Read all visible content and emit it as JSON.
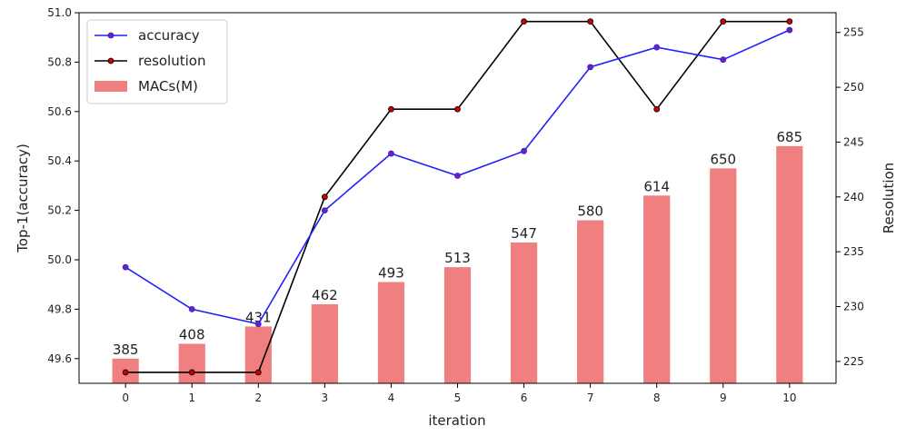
{
  "chart_data": {
    "type": "bar",
    "xlabel": "iteration",
    "ylabel_left": "Top-1(accuracy)",
    "ylabel_right": "Resolution",
    "categories": [
      "0",
      "1",
      "2",
      "3",
      "4",
      "5",
      "6",
      "7",
      "8",
      "9",
      "10"
    ],
    "x": [
      0,
      1,
      2,
      3,
      4,
      5,
      6,
      7,
      8,
      9,
      10
    ],
    "xlim": [
      -0.7,
      10.7
    ],
    "ylim_left": [
      49.5,
      51.0
    ],
    "ylim_right": [
      223.0,
      256.8
    ],
    "left_ticks": [
      "49.6",
      "49.8",
      "50.0",
      "50.2",
      "50.4",
      "50.6",
      "50.8",
      "51.0"
    ],
    "right_ticks": [
      "225",
      "230",
      "235",
      "240",
      "245",
      "250",
      "255"
    ],
    "legend_position": "upper-left",
    "grid": false,
    "series": [
      {
        "name": "accuracy",
        "type": "line",
        "axis": "left",
        "color": "#1f1fff",
        "marker_color": "#7b1fa2",
        "values": [
          49.97,
          49.8,
          49.74,
          50.2,
          50.43,
          50.34,
          50.44,
          50.78,
          50.86,
          50.81,
          50.93
        ]
      },
      {
        "name": "resolution",
        "type": "line",
        "axis": "right",
        "color": "#000000",
        "marker_color": "#cc0000",
        "values": [
          224,
          224,
          224,
          240,
          248,
          248,
          256,
          256,
          248,
          256,
          256
        ]
      },
      {
        "name": "MACs(M)",
        "type": "bar",
        "axis": "left",
        "color": "#f08080",
        "values": [
          385,
          408,
          431,
          462,
          493,
          513,
          547,
          580,
          614,
          650,
          685
        ],
        "labels": [
          "385",
          "408",
          "431",
          "462",
          "493",
          "513",
          "547",
          "580",
          "614",
          "650",
          "685"
        ],
        "display_accuracy_height": [
          49.6,
          49.66,
          49.73,
          49.82,
          49.91,
          49.97,
          50.07,
          50.16,
          50.26,
          50.37,
          50.46
        ]
      }
    ]
  }
}
